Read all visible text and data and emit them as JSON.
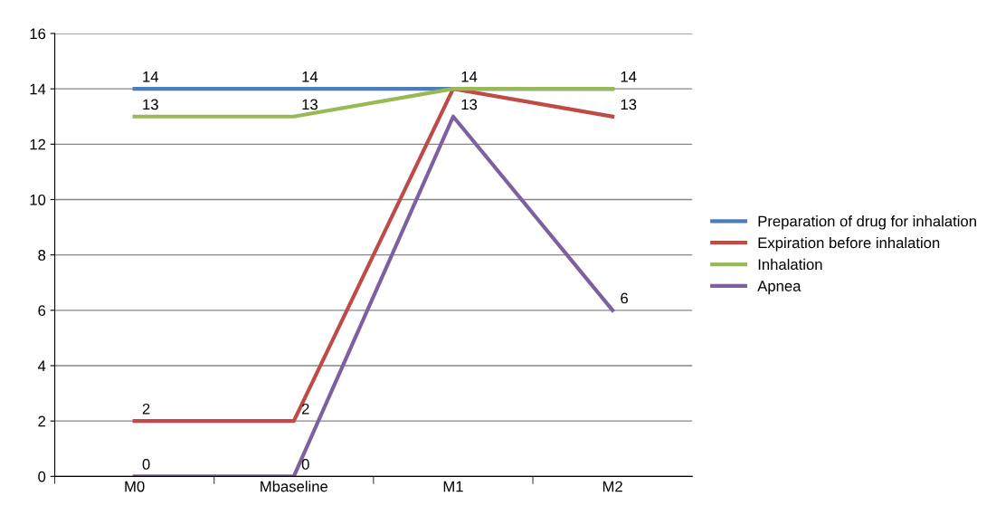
{
  "chart_data": {
    "type": "line",
    "categories": [
      "M0",
      "Mbaseline",
      "M1",
      "M2"
    ],
    "series": [
      {
        "name": "Preparation of drug for inhalation",
        "color": "#4a7ebb",
        "values": [
          14,
          14,
          14,
          14
        ],
        "value_labels": [
          "14",
          "14",
          null,
          "14"
        ]
      },
      {
        "name": "Expiration before inhalation",
        "color": "#be4b48",
        "values": [
          2,
          2,
          14,
          13
        ],
        "value_labels": [
          "2",
          "2",
          "14",
          "13"
        ]
      },
      {
        "name": "Inhalation",
        "color": "#98b954",
        "values": [
          13,
          13,
          14,
          14
        ],
        "value_labels": [
          "13",
          "13",
          null,
          null
        ]
      },
      {
        "name": "Apnea",
        "color": "#7d60a0",
        "values": [
          0,
          0,
          13,
          6
        ],
        "value_labels": [
          "0",
          "0",
          "13",
          "6"
        ]
      }
    ],
    "ylim": [
      0,
      16
    ],
    "yticks": [
      0,
      2,
      4,
      6,
      8,
      10,
      12,
      14,
      16
    ],
    "grid": "y",
    "legend": "right",
    "marker": "none",
    "line_style": "solid"
  }
}
